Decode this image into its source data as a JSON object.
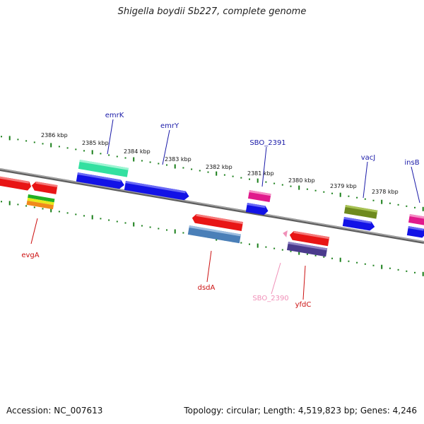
{
  "header": {
    "title": "Shigella boydii Sb227, complete genome"
  },
  "footer": {
    "accession": "Accession: NC_007613",
    "summary": "Topology: circular; Length: 4,519,823 bp; Genes: 4,246"
  },
  "colors": {
    "backbone": "#808080",
    "tick": "#1a7f1a",
    "label_forward": "#1a1aa8",
    "label_reverse": "#cc1111",
    "label_pseudo": "#f090b8"
  },
  "scale": {
    "ticks": [
      {
        "label": "2386 kbp"
      },
      {
        "label": "2385 kbp"
      },
      {
        "label": "2384 kbp"
      },
      {
        "label": "2383 kbp"
      },
      {
        "label": "2382 kbp"
      },
      {
        "label": "2381 kbp"
      },
      {
        "label": "2380 kbp"
      },
      {
        "label": "2379 kbp"
      },
      {
        "label": "2378 kbp"
      }
    ]
  },
  "genes": {
    "labels": [
      {
        "name": "emrK"
      },
      {
        "name": "emrY"
      },
      {
        "name": "SBO_2391"
      },
      {
        "name": "vacJ"
      },
      {
        "name": "insB"
      },
      {
        "name": "evgA"
      },
      {
        "name": "dsdA"
      },
      {
        "name": "SBO_2390"
      },
      {
        "name": "yfdC"
      }
    ]
  }
}
